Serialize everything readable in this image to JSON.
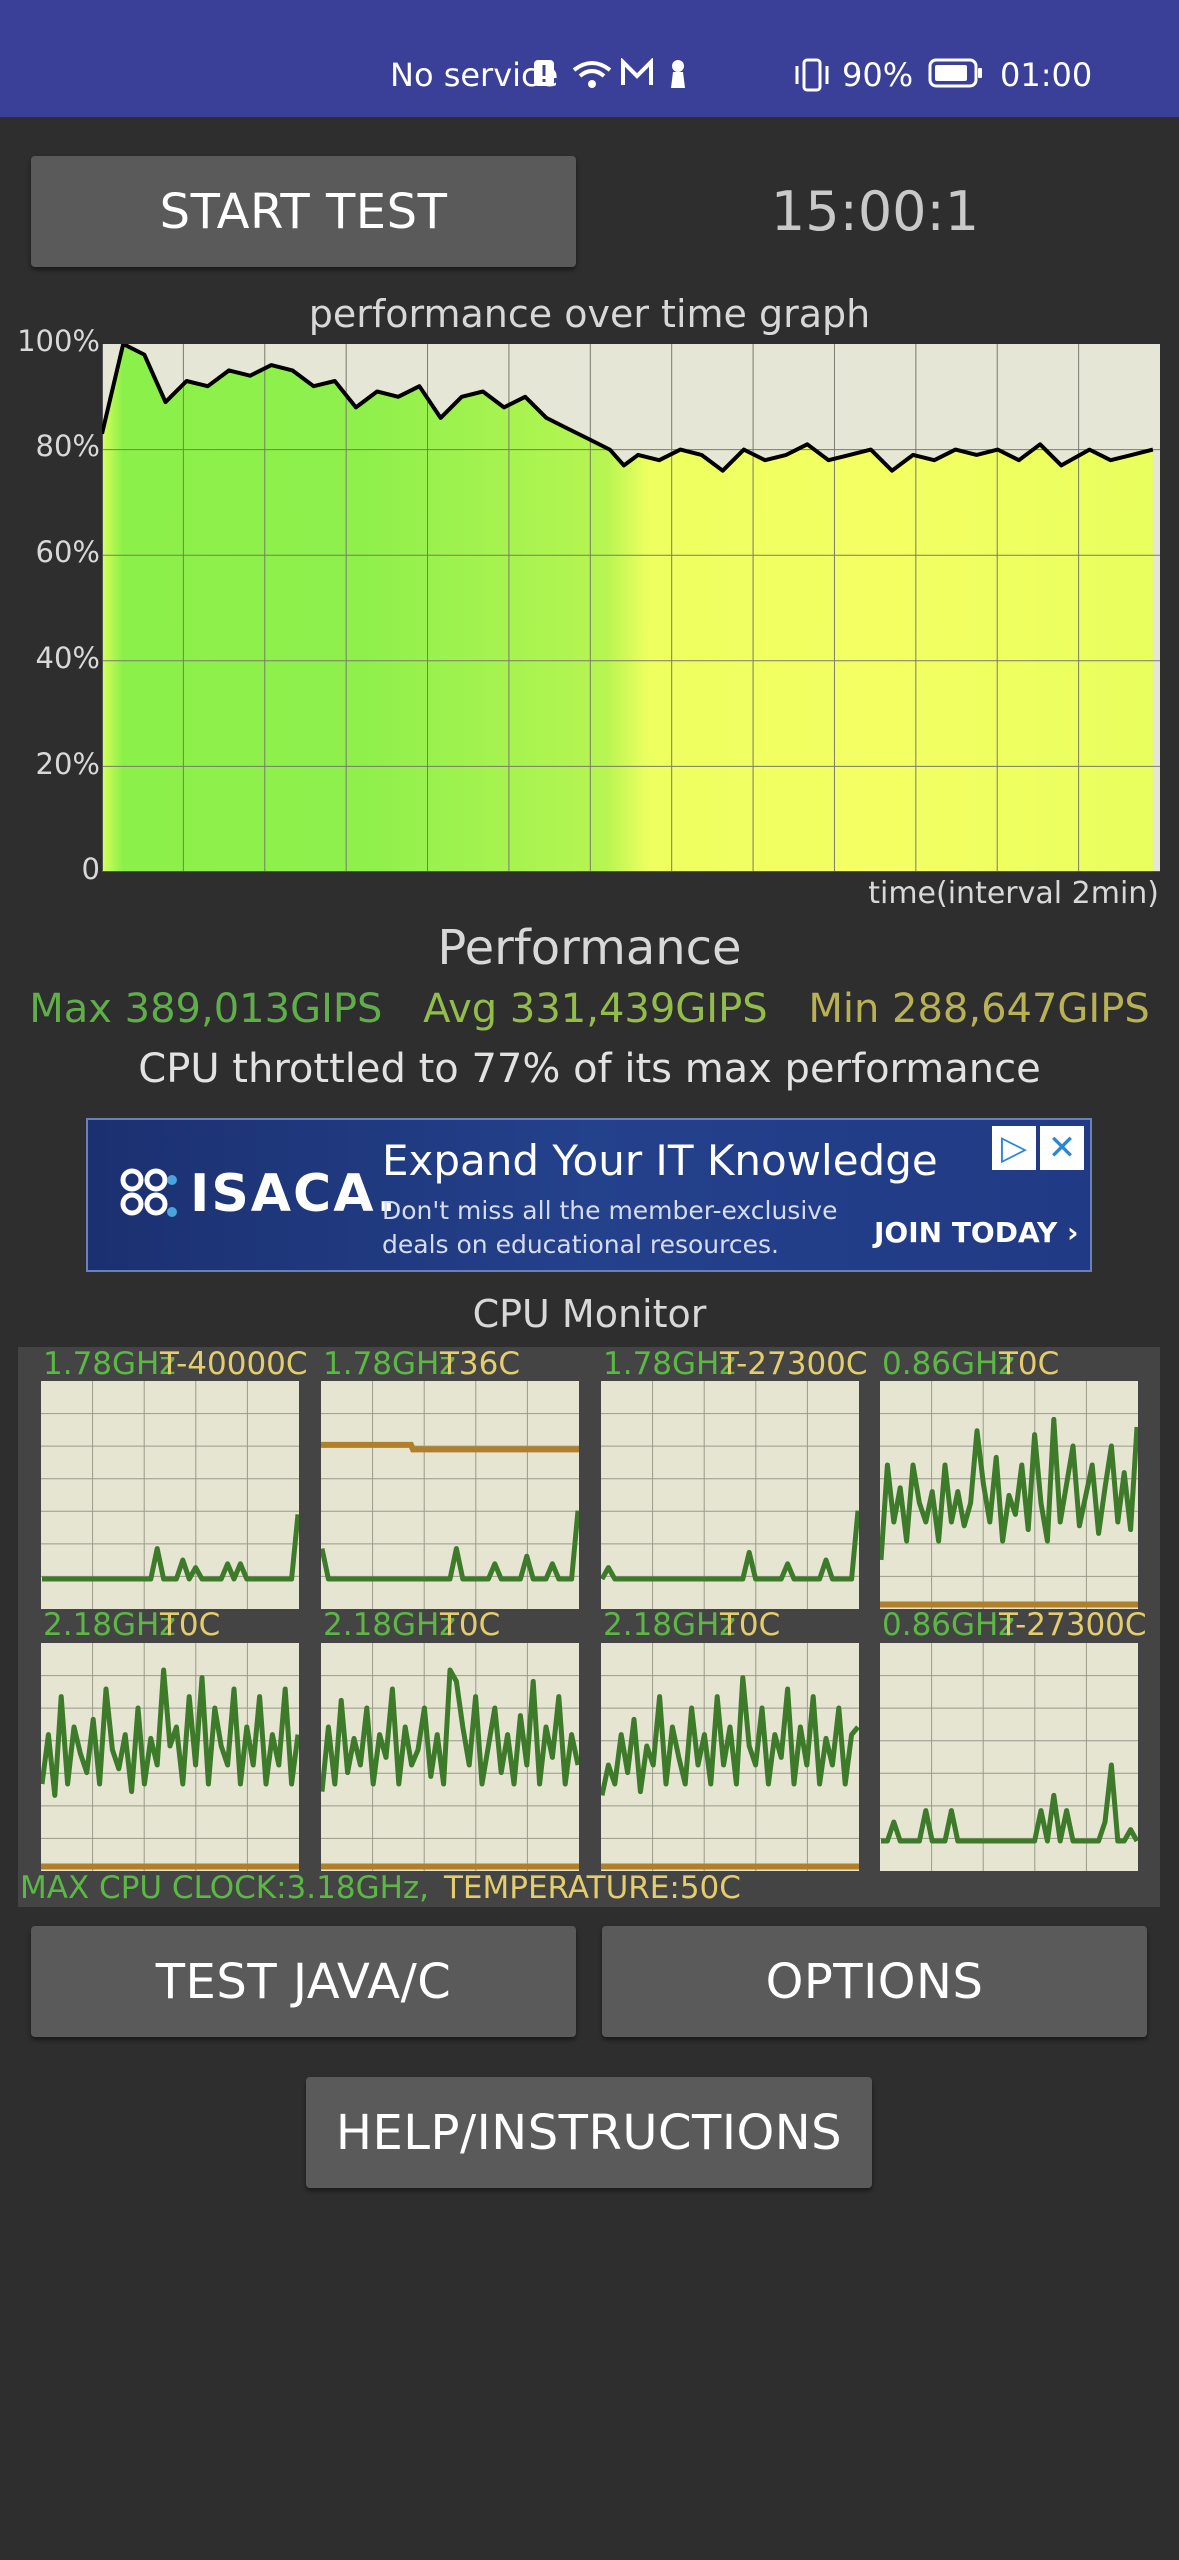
{
  "status_bar": {
    "carrier": "No service",
    "battery": "90%",
    "time": "01:00"
  },
  "header": {
    "start_button": "START TEST",
    "timer": "15:00:1"
  },
  "chart_data": {
    "type": "line",
    "title": "performance over time graph",
    "xlabel": "time(interval 2min)",
    "ylabel": "",
    "ylim": [
      0,
      100
    ],
    "yticks": [
      "100%",
      "80%",
      "60%",
      "40%",
      "20%",
      "0"
    ],
    "xlim": [
      0,
      15
    ],
    "grid": true,
    "series": [
      {
        "x": [
          0,
          0.3,
          0.6,
          0.9,
          1.2,
          1.5,
          1.8,
          2.1,
          2.4,
          2.7,
          3.0,
          3.3,
          3.6,
          3.9,
          4.2,
          4.5,
          4.8,
          5.1,
          5.4,
          5.7,
          6.0,
          6.3,
          6.6,
          6.9,
          7.2,
          7.4,
          7.6,
          7.9,
          8.2,
          8.5,
          8.8,
          9.1,
          9.4,
          9.7,
          10.0,
          10.3,
          10.6,
          10.9,
          11.2,
          11.5,
          11.8,
          12.1,
          12.4,
          12.7,
          13.0,
          13.3,
          13.6,
          14.0,
          14.3,
          14.6,
          14.9
        ],
        "values": [
          83,
          100,
          98,
          89,
          93,
          92,
          95,
          94,
          96,
          95,
          92,
          93,
          88,
          91,
          90,
          92,
          86,
          90,
          91,
          88,
          90,
          86,
          84,
          82,
          80,
          77,
          79,
          78,
          80,
          79,
          76,
          80,
          78,
          79,
          81,
          78,
          79,
          80,
          76,
          79,
          78,
          80,
          79,
          80,
          78,
          81,
          77,
          80,
          78,
          79,
          80
        ]
      }
    ]
  },
  "performance": {
    "title": "Performance",
    "max": "Max 389,013GIPS",
    "avg": "Avg 331,439GIPS",
    "min": "Min 288,647GIPS",
    "throttle": "CPU throttled to 77% of its max performance"
  },
  "ad": {
    "brand": "ISACA.",
    "headline": "Expand Your IT Knowledge",
    "subline1": "Don't miss all the member-exclusive",
    "subline2": "deals on educational resources.",
    "cta": "JOIN TODAY ›"
  },
  "cpu_monitor": {
    "title": "CPU Monitor",
    "cores": [
      {
        "freq": "1.78GHz",
        "temp": "T-40000C",
        "load": [
          0,
          0,
          0,
          0,
          0,
          0,
          0,
          0,
          0,
          0,
          0,
          0,
          0,
          0,
          0,
          0,
          0,
          0,
          16,
          0,
          0,
          0,
          10,
          0,
          6,
          0,
          0,
          0,
          0,
          8,
          0,
          8,
          0,
          0,
          0,
          0,
          0,
          0,
          0,
          0,
          34
        ]
      },
      {
        "freq": "1.78GHz",
        "temp": "T36C",
        "load": [
          16,
          0,
          0,
          0,
          0,
          0,
          0,
          0,
          0,
          0,
          0,
          0,
          0,
          0,
          0,
          0,
          0,
          0,
          0,
          0,
          0,
          16,
          0,
          0,
          0,
          0,
          0,
          8,
          0,
          0,
          0,
          0,
          12,
          0,
          0,
          0,
          8,
          0,
          0,
          0,
          36
        ]
      },
      {
        "freq": "1.78GHz",
        "temp": "T-27300C",
        "load": [
          0,
          6,
          0,
          0,
          0,
          0,
          0,
          0,
          0,
          0,
          0,
          0,
          0,
          0,
          0,
          0,
          0,
          0,
          0,
          0,
          0,
          0,
          0,
          14,
          0,
          0,
          0,
          0,
          0,
          8,
          0,
          0,
          0,
          0,
          0,
          10,
          0,
          0,
          0,
          0,
          36
        ]
      },
      {
        "freq": "0.86GHz",
        "temp": "T0C",
        "load": [
          10,
          60,
          30,
          48,
          20,
          60,
          40,
          30,
          46,
          20,
          60,
          30,
          46,
          28,
          40,
          78,
          50,
          30,
          64,
          20,
          44,
          34,
          60,
          26,
          76,
          40,
          20,
          84,
          30,
          50,
          70,
          28,
          44,
          60,
          24,
          48,
          70,
          30,
          56,
          26,
          80
        ]
      },
      {
        "freq": "2.18GHz",
        "temp": "T0C",
        "load": [
          30,
          56,
          24,
          76,
          30,
          60,
          46,
          36,
          64,
          30,
          80,
          48,
          38,
          56,
          26,
          70,
          30,
          54,
          40,
          90,
          50,
          60,
          30,
          76,
          40,
          86,
          30,
          70,
          50,
          40,
          80,
          30,
          60,
          40,
          76,
          30,
          56,
          40,
          80,
          30,
          56
        ]
      },
      {
        "freq": "2.18GHz",
        "temp": "T0C",
        "load": [
          26,
          60,
          30,
          74,
          36,
          54,
          40,
          70,
          30,
          56,
          44,
          80,
          30,
          60,
          40,
          48,
          70,
          34,
          56,
          30,
          90,
          84,
          60,
          40,
          76,
          30,
          50,
          70,
          36,
          56,
          30,
          66,
          40,
          84,
          30,
          60,
          44,
          76,
          30,
          56,
          40
        ]
      },
      {
        "freq": "2.18GHz",
        "temp": "T0C",
        "load": [
          24,
          40,
          30,
          56,
          36,
          64,
          26,
          50,
          40,
          76,
          30,
          60,
          44,
          30,
          70,
          40,
          56,
          30,
          76,
          40,
          60,
          30,
          86,
          50,
          40,
          70,
          30,
          56,
          44,
          80,
          30,
          60,
          40,
          76,
          30,
          54,
          40,
          70,
          30,
          56,
          60
        ]
      },
      {
        "freq": "0.86GHz",
        "temp": "T-27300C",
        "load": [
          0,
          0,
          10,
          0,
          0,
          0,
          0,
          16,
          0,
          0,
          0,
          16,
          0,
          0,
          0,
          0,
          0,
          0,
          0,
          0,
          0,
          0,
          0,
          0,
          0,
          16,
          0,
          24,
          0,
          16,
          0,
          0,
          0,
          0,
          0,
          10,
          40,
          0,
          0,
          6,
          0
        ]
      }
    ],
    "max_clock": "MAX CPU CLOCK:3.18GHz,",
    "temperature": "TEMPERATURE:50C"
  },
  "buttons": {
    "test": "TEST JAVA/C",
    "options": "OPTIONS",
    "help": "HELP/INSTRUCTIONS"
  },
  "colors": {
    "status_bar": "#3a3f97",
    "background": "#2e2e2e",
    "button": "#5a5a5a",
    "graph_bg": "#e6e6d6",
    "line": "#000000",
    "cpu_line": "#3d7a2a",
    "temp_line": "#b07f2a",
    "max_color": "#5fae4a",
    "avg_color": "#93bd4b",
    "min_color": "#b8b254"
  }
}
